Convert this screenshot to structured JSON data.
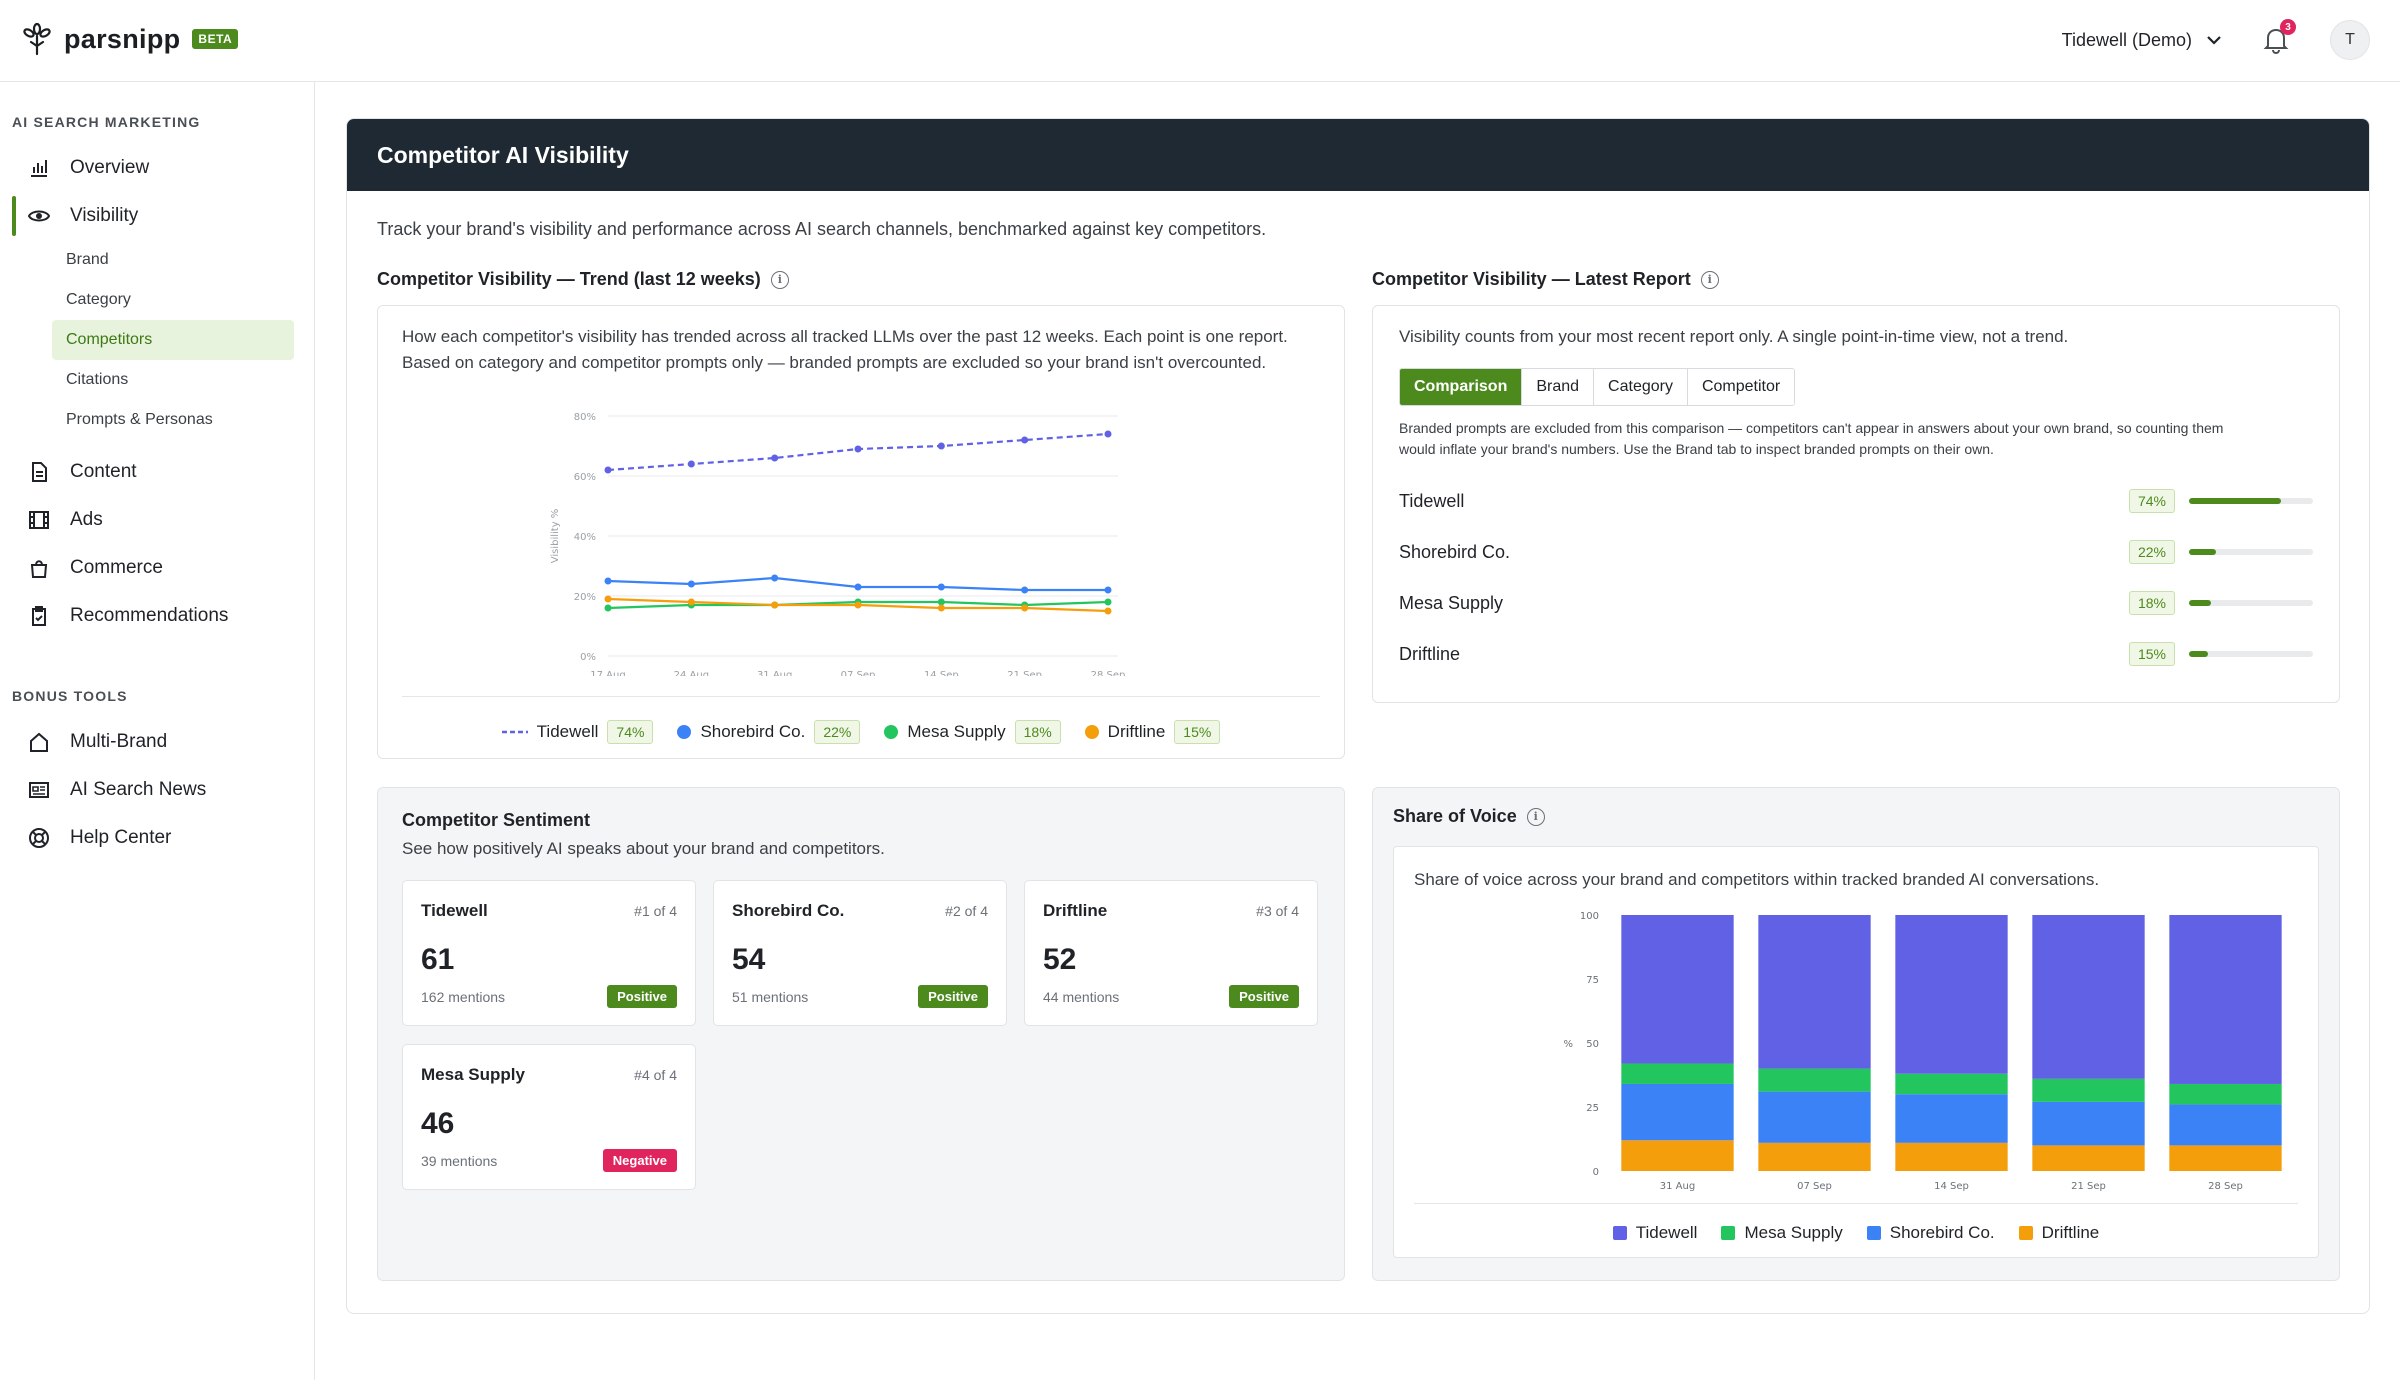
{
  "app": {
    "name": "parsnipp",
    "beta": "BETA"
  },
  "topbar": {
    "workspace": "Tidewell (Demo)",
    "notifications": "3",
    "avatar": "T"
  },
  "sidebar": {
    "section1": "AI SEARCH MARKETING",
    "overview": "Overview",
    "visibility": "Visibility",
    "sub": [
      "Brand",
      "Category",
      "Competitors",
      "Citations",
      "Prompts & Personas"
    ],
    "content": "Content",
    "ads": "Ads",
    "commerce": "Commerce",
    "recommendations": "Recommendations",
    "section2": "BONUS TOOLS",
    "multibrand": "Multi-Brand",
    "news": "AI Search News",
    "help": "Help Center"
  },
  "page": {
    "title": "Competitor AI Visibility",
    "description": "Track your brand's visibility and performance across AI search channels, benchmarked against key competitors."
  },
  "trend": {
    "title": "Competitor Visibility — Trend (last 12 weeks)",
    "description_1": "How each competitor's visibility has trended across all tracked LLMs over the past 12 weeks. Each point is one report.",
    "description_2": "Based on category and competitor prompts only — branded prompts are excluded so your brand isn't overcounted."
  },
  "latest": {
    "title": "Competitor Visibility — Latest Report",
    "description": "Visibility counts from your most recent report only. A single point-in-time view, not a trend.",
    "tabs": [
      "Comparison",
      "Brand",
      "Category",
      "Competitor"
    ],
    "note_1": "Branded prompts are excluded from this comparison — competitors can't appear in answers about your own brand, so counting them",
    "note_2": "would inflate your brand's numbers. Use the Brand tab to inspect branded prompts on their own.",
    "rows": [
      {
        "name": "Tidewell",
        "pct": "74%",
        "value": 0.74
      },
      {
        "name": "Shorebird Co.",
        "pct": "22%",
        "value": 0.22
      },
      {
        "name": "Mesa Supply",
        "pct": "18%",
        "value": 0.18
      },
      {
        "name": "Driftline",
        "pct": "15%",
        "value": 0.15
      }
    ]
  },
  "sentiment": {
    "title": "Competitor Sentiment",
    "subtitle": "See how positively AI speaks about your brand and competitors.",
    "cards": [
      {
        "name": "Tidewell",
        "rank": "#1 of 4",
        "score": "61",
        "mentions": "162 mentions",
        "tag": "Positive",
        "tag_color": "#4d8a1e"
      },
      {
        "name": "Shorebird Co.",
        "rank": "#2 of 4",
        "score": "54",
        "mentions": "51 mentions",
        "tag": "Positive",
        "tag_color": "#4d8a1e"
      },
      {
        "name": "Driftline",
        "rank": "#3 of 4",
        "score": "52",
        "mentions": "44 mentions",
        "tag": "Positive",
        "tag_color": "#4d8a1e"
      },
      {
        "name": "Mesa Supply",
        "rank": "#4 of 4",
        "score": "46",
        "mentions": "39 mentions",
        "tag": "Negative",
        "tag_color": "#e0245e"
      }
    ]
  },
  "sov": {
    "title": "Share of Voice",
    "description": "Share of voice across your brand and competitors within tracked branded AI conversations."
  },
  "colors": {
    "tidewell": "#6161e6",
    "shorebird": "#3b82f6",
    "mesa": "#22c55e",
    "driftline": "#f59e0b",
    "brand_green": "#4d8a1e"
  },
  "chart_data": [
    {
      "type": "line",
      "x": [
        "17 Aug",
        "24 Aug",
        "31 Aug",
        "07 Sep",
        "14 Sep",
        "21 Sep",
        "28 Sep"
      ],
      "ylabel": "Visibility %",
      "ylim": [
        0,
        80
      ],
      "yticks": [
        "0%",
        "20%",
        "40%",
        "60%",
        "80%"
      ],
      "grid": true,
      "series": [
        {
          "name": "Tidewell",
          "pct": "74%",
          "color": "#6161e6",
          "dashed": true,
          "values": [
            62,
            64,
            66,
            69,
            70,
            72,
            74
          ]
        },
        {
          "name": "Shorebird Co.",
          "pct": "22%",
          "color": "#3b82f6",
          "values": [
            25,
            24,
            26,
            23,
            23,
            22,
            22
          ]
        },
        {
          "name": "Mesa Supply",
          "pct": "18%",
          "color": "#22c55e",
          "values": [
            16,
            17,
            17,
            18,
            18,
            17,
            18
          ]
        },
        {
          "name": "Driftline",
          "pct": "15%",
          "color": "#f59e0b",
          "values": [
            19,
            18,
            17,
            17,
            16,
            16,
            15
          ]
        }
      ]
    },
    {
      "type": "bar",
      "stacked": true,
      "categories": [
        "31 Aug",
        "07 Sep",
        "14 Sep",
        "21 Sep",
        "28 Sep"
      ],
      "ylabel": "%",
      "ylim": [
        0,
        100
      ],
      "yticks": [
        "0",
        "25",
        "50",
        "75",
        "100"
      ],
      "series": [
        {
          "name": "Driftline",
          "color": "#f59e0b",
          "values": [
            12,
            11,
            11,
            10,
            10
          ]
        },
        {
          "name": "Shorebird Co.",
          "color": "#3b82f6",
          "values": [
            22,
            20,
            19,
            17,
            16
          ]
        },
        {
          "name": "Mesa Supply",
          "color": "#22c55e",
          "values": [
            8,
            9,
            8,
            9,
            8
          ]
        },
        {
          "name": "Tidewell",
          "color": "#6161e6",
          "values": [
            58,
            60,
            62,
            64,
            66
          ]
        }
      ],
      "legend": [
        "Tidewell",
        "Mesa Supply",
        "Shorebird Co.",
        "Driftline"
      ]
    }
  ]
}
